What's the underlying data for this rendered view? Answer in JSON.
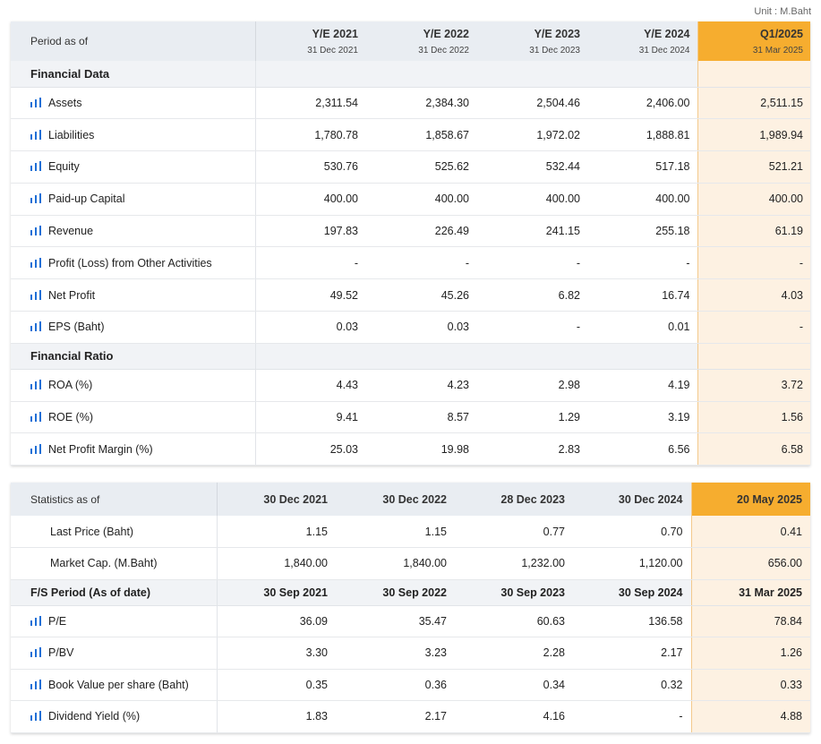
{
  "unit_label": "Unit : M.Baht",
  "financials": {
    "period_label": "Period as of",
    "periods": [
      {
        "label": "Y/E 2021",
        "date": "31 Dec 2021"
      },
      {
        "label": "Y/E 2022",
        "date": "31 Dec 2022"
      },
      {
        "label": "Y/E 2023",
        "date": "31 Dec 2023"
      },
      {
        "label": "Y/E 2024",
        "date": "31 Dec 2024"
      },
      {
        "label": "Q1/2025",
        "date": "31 Mar 2025"
      }
    ],
    "section_data": "Financial Data",
    "data_rows": [
      {
        "label": "Assets",
        "values": [
          "2,311.54",
          "2,384.30",
          "2,504.46",
          "2,406.00",
          "2,511.15"
        ]
      },
      {
        "label": "Liabilities",
        "values": [
          "1,780.78",
          "1,858.67",
          "1,972.02",
          "1,888.81",
          "1,989.94"
        ]
      },
      {
        "label": "Equity",
        "values": [
          "530.76",
          "525.62",
          "532.44",
          "517.18",
          "521.21"
        ]
      },
      {
        "label": "Paid-up Capital",
        "values": [
          "400.00",
          "400.00",
          "400.00",
          "400.00",
          "400.00"
        ]
      },
      {
        "label": "Revenue",
        "values": [
          "197.83",
          "226.49",
          "241.15",
          "255.18",
          "61.19"
        ]
      },
      {
        "label": "Profit (Loss) from Other Activities",
        "values": [
          "-",
          "-",
          "-",
          "-",
          "-"
        ]
      },
      {
        "label": "Net Profit",
        "values": [
          "49.52",
          "45.26",
          "6.82",
          "16.74",
          "4.03"
        ]
      },
      {
        "label": "EPS (Baht)",
        "values": [
          "0.03",
          "0.03",
          "-",
          "0.01",
          "-"
        ]
      }
    ],
    "section_ratio": "Financial Ratio",
    "ratio_rows": [
      {
        "label": "ROA (%)",
        "values": [
          "4.43",
          "4.23",
          "2.98",
          "4.19",
          "3.72"
        ]
      },
      {
        "label": "ROE (%)",
        "values": [
          "9.41",
          "8.57",
          "1.29",
          "3.19",
          "1.56"
        ]
      },
      {
        "label": "Net Profit Margin (%)",
        "values": [
          "25.03",
          "19.98",
          "2.83",
          "6.56",
          "6.58"
        ]
      }
    ]
  },
  "statistics": {
    "label": "Statistics as of",
    "dates": [
      "30 Dec 2021",
      "30 Dec 2022",
      "28 Dec 2023",
      "30 Dec 2024",
      "20 May 2025"
    ],
    "market_rows": [
      {
        "label": "Last Price (Baht)",
        "values": [
          "1.15",
          "1.15",
          "0.77",
          "0.70",
          "0.41"
        ]
      },
      {
        "label": "Market Cap. (M.Baht)",
        "values": [
          "1,840.00",
          "1,840.00",
          "1,232.00",
          "1,120.00",
          "656.00"
        ]
      }
    ],
    "fs_period": {
      "label": "F/S Period (As of date)",
      "values": [
        "30 Sep 2021",
        "30 Sep 2022",
        "30 Sep 2023",
        "30 Sep 2024",
        "31 Mar 2025"
      ]
    },
    "ratio_rows": [
      {
        "label": "P/E",
        "values": [
          "36.09",
          "35.47",
          "60.63",
          "136.58",
          "78.84"
        ]
      },
      {
        "label": "P/BV",
        "values": [
          "3.30",
          "3.23",
          "2.28",
          "2.17",
          "1.26"
        ]
      },
      {
        "label": "Book Value per share (Baht)",
        "values": [
          "0.35",
          "0.36",
          "0.34",
          "0.32",
          "0.33"
        ]
      },
      {
        "label": "Dividend Yield (%)",
        "values": [
          "1.83",
          "2.17",
          "4.16",
          "-",
          "4.88"
        ]
      }
    ]
  },
  "colors": {
    "highlight_header": "#f6ad2f",
    "highlight_cell": "#fdf1e2",
    "chart_icon": "#1f6fd6"
  }
}
